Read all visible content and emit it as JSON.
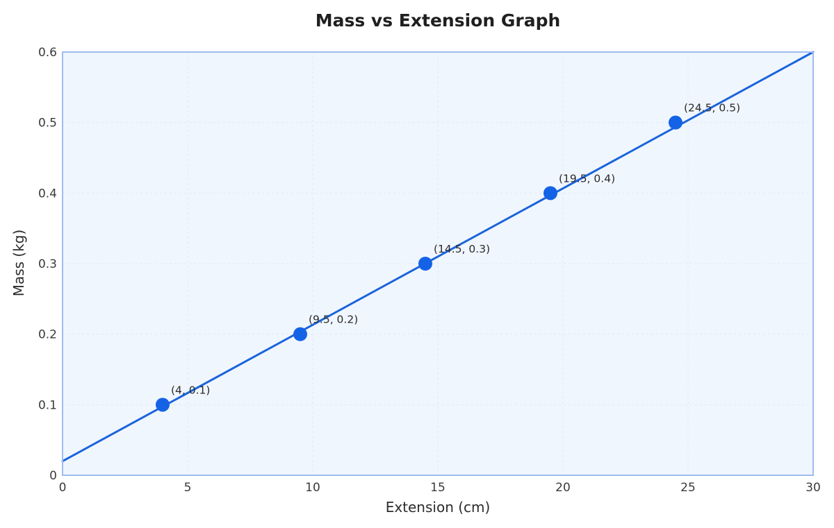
{
  "chart_data": {
    "type": "scatter",
    "title": "Mass vs Extension Graph",
    "xlabel": "Extension (cm)",
    "ylabel": "Mass (kg)",
    "xlim": [
      0,
      30
    ],
    "ylim": [
      0,
      0.6
    ],
    "xticks": [
      "0",
      "5",
      "10",
      "15",
      "20",
      "25",
      "30"
    ],
    "yticks": [
      "0",
      "0.1",
      "0.2",
      "0.3",
      "0.4",
      "0.5",
      "0.6"
    ],
    "grid": true,
    "points": [
      {
        "x": 4,
        "y": 0.1,
        "label": "(4, 0.1)"
      },
      {
        "x": 9.5,
        "y": 0.2,
        "label": "(9.5, 0.2)"
      },
      {
        "x": 14.5,
        "y": 0.3,
        "label": "(14.5, 0.3)"
      },
      {
        "x": 19.5,
        "y": 0.4,
        "label": "(19.5, 0.4)"
      },
      {
        "x": 24.5,
        "y": 0.5,
        "label": "(24.5, 0.5)"
      }
    ],
    "fit_line": {
      "x": [
        0,
        30
      ],
      "y": [
        0.02,
        0.6
      ]
    },
    "colors": {
      "point": "#1463e6",
      "line": "#1a64db",
      "plot_bg": "#f0f6fe",
      "plot_border": "#9dbdf0",
      "grid": "#dfe8f5"
    }
  }
}
